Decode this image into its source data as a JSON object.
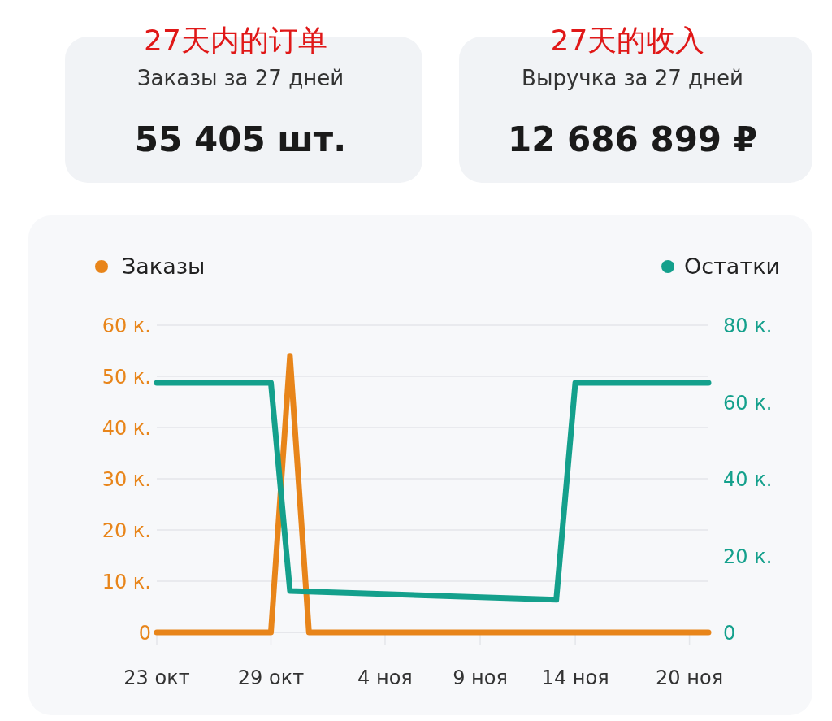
{
  "chart_data": [
    {
      "type": "other",
      "title": "27天内的订单",
      "subtitle": "Заказы за 27 дней",
      "annotations": [
        "55 405 шт."
      ]
    },
    {
      "type": "other",
      "title": "27天的收入",
      "subtitle": "Выручка за 27 дней",
      "annotations": [
        "12 686 899 ₽"
      ]
    },
    {
      "type": "line",
      "legend": "top",
      "grid": "y",
      "line_style": "solid",
      "xlim": [
        "--10-23",
        "--11-21"
      ],
      "xticks": [
        {
          "value": "--10-23",
          "label": "23 окт"
        },
        {
          "value": "--10-29",
          "label": "29 окт"
        },
        {
          "value": "--11-04",
          "label": "4 ноя"
        },
        {
          "value": "--11-09",
          "label": "9 ноя"
        },
        {
          "value": "--11-14",
          "label": "14 ноя"
        },
        {
          "value": "--11-20",
          "label": "20 ноя"
        }
      ],
      "ylim": [
        0,
        60
      ],
      "yticks": [
        0,
        {
          "value": 10,
          "label": "10 к."
        },
        {
          "value": 20,
          "label": "20 к."
        },
        {
          "value": 30,
          "label": "30 к."
        },
        {
          "value": 40,
          "label": "40 к."
        },
        {
          "value": 50,
          "label": "50 к."
        },
        {
          "value": 60,
          "label": "60 к."
        }
      ],
      "y2lim": [
        0,
        80
      ],
      "y2ticks": [
        0,
        {
          "value": 20,
          "label": "20 к."
        },
        {
          "value": 40,
          "label": "40 к."
        },
        {
          "value": 60,
          "label": "60 к."
        },
        {
          "value": 80,
          "label": "80 к."
        }
      ],
      "series": [
        {
          "name": "Заказы",
          "color": "#e8851a",
          "x": [
            "--10-23",
            "--10-29",
            "--10-30",
            "--10-31",
            "--11-21"
          ],
          "values": [
            0,
            0,
            54,
            0,
            0
          ]
        },
        {
          "name": "Остатки",
          "color": "#14a08c",
          "axis": "y2",
          "x": [
            "--10-23",
            "--10-29",
            "--10-30",
            "--11-13",
            "--11-14",
            "--11-21"
          ],
          "values": [
            65,
            65,
            10.8,
            8.5,
            65,
            65
          ]
        }
      ]
    }
  ]
}
